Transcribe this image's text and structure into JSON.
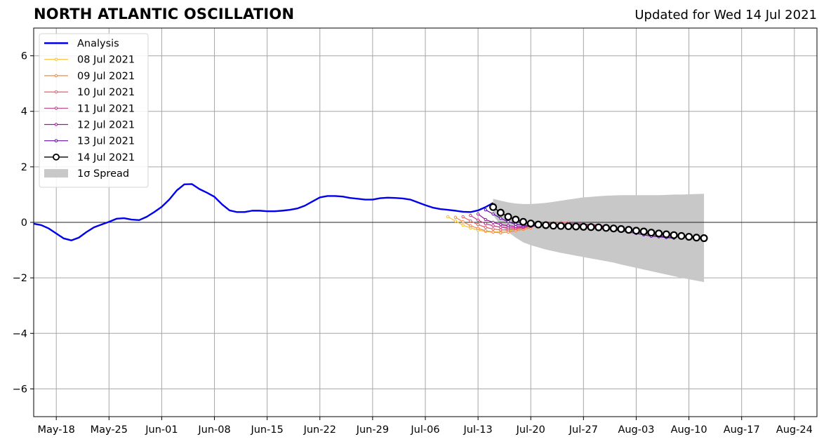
{
  "chart_data": {
    "type": "line",
    "title": "NORTH ATLANTIC OSCILLATION",
    "subtitle": "Updated for Wed 14 Jul 2021",
    "xlabel": "",
    "ylabel": "",
    "xlim": [
      "2021-05-15",
      "2021-08-27"
    ],
    "ylim": [
      -7,
      7
    ],
    "grid": true,
    "legend_position": "top-left",
    "x_ticks": [
      {
        "date": "2021-05-18",
        "label": "May-18"
      },
      {
        "date": "2021-05-25",
        "label": "May-25"
      },
      {
        "date": "2021-06-01",
        "label": "Jun-01"
      },
      {
        "date": "2021-06-08",
        "label": "Jun-08"
      },
      {
        "date": "2021-06-15",
        "label": "Jun-15"
      },
      {
        "date": "2021-06-22",
        "label": "Jun-22"
      },
      {
        "date": "2021-06-29",
        "label": "Jun-29"
      },
      {
        "date": "2021-07-06",
        "label": "Jul-06"
      },
      {
        "date": "2021-07-13",
        "label": "Jul-13"
      },
      {
        "date": "2021-07-20",
        "label": "Jul-20"
      },
      {
        "date": "2021-07-27",
        "label": "Jul-27"
      },
      {
        "date": "2021-08-03",
        "label": "Aug-03"
      },
      {
        "date": "2021-08-10",
        "label": "Aug-10"
      },
      {
        "date": "2021-08-17",
        "label": "Aug-17"
      },
      {
        "date": "2021-08-24",
        "label": "Aug-24"
      }
    ],
    "y_ticks": [
      {
        "value": 6,
        "label": "6"
      },
      {
        "value": 4,
        "label": "4"
      },
      {
        "value": 2,
        "label": "2"
      },
      {
        "value": 0,
        "label": "0"
      },
      {
        "value": -2,
        "label": "−2"
      },
      {
        "value": -4,
        "label": "−4"
      },
      {
        "value": -6,
        "label": "−6"
      }
    ],
    "analysis": {
      "name": "Analysis",
      "color": "#0000ee",
      "start": "2021-05-15",
      "values": [
        -0.05,
        -0.1,
        -0.22,
        -0.4,
        -0.58,
        -0.65,
        -0.55,
        -0.35,
        -0.18,
        -0.08,
        0.02,
        0.13,
        0.15,
        0.1,
        0.08,
        0.2,
        0.37,
        0.56,
        0.82,
        1.15,
        1.37,
        1.38,
        1.2,
        1.07,
        0.92,
        0.65,
        0.43,
        0.37,
        0.37,
        0.42,
        0.42,
        0.4,
        0.4,
        0.42,
        0.45,
        0.5,
        0.6,
        0.75,
        0.9,
        0.95,
        0.95,
        0.93,
        0.88,
        0.85,
        0.82,
        0.82,
        0.87,
        0.89,
        0.88,
        0.86,
        0.82,
        0.72,
        0.62,
        0.53,
        0.48,
        0.45,
        0.42,
        0.38,
        0.37,
        0.43,
        0.55,
        0.7
      ]
    },
    "forecasts": [
      {
        "name": "08 Jul 2021",
        "color": "#fbc12e",
        "start": "2021-07-09",
        "values": [
          0.2,
          0.05,
          -0.1,
          -0.2,
          -0.28,
          -0.33,
          -0.35,
          -0.33,
          -0.3,
          -0.25,
          -0.2,
          -0.15
        ]
      },
      {
        "name": "09 Jul 2021",
        "color": "#f3883c",
        "start": "2021-07-10",
        "values": [
          0.18,
          0.02,
          -0.12,
          -0.22,
          -0.3,
          -0.35,
          -0.38,
          -0.35,
          -0.3,
          -0.25,
          -0.2
        ]
      },
      {
        "name": "10 Jul 2021",
        "color": "#e35f67",
        "start": "2021-07-11",
        "values": [
          0.2,
          0.05,
          -0.08,
          -0.18,
          -0.24,
          -0.27,
          -0.27,
          -0.24,
          -0.2,
          -0.15,
          -0.1,
          -0.05,
          -0.02,
          0,
          0
        ]
      },
      {
        "name": "11 Jul 2021",
        "color": "#c33a86",
        "start": "2021-07-12",
        "values": [
          0.25,
          0.08,
          -0.05,
          -0.12,
          -0.18,
          -0.2,
          -0.2,
          -0.18,
          -0.15,
          -0.12,
          -0.1,
          -0.08,
          -0.06,
          -0.05,
          -0.05,
          -0.06,
          -0.08,
          -0.1,
          -0.15,
          -0.2,
          -0.25,
          -0.3,
          -0.35,
          -0.4,
          -0.45,
          -0.5,
          -0.53,
          -0.55
        ]
      },
      {
        "name": "12 Jul 2021",
        "color": "#9a179b",
        "start": "2021-07-13",
        "values": [
          0.3,
          0.1,
          0,
          -0.08,
          -0.12,
          -0.15,
          -0.15,
          -0.14,
          -0.12,
          -0.1,
          -0.08,
          -0.07,
          -0.06,
          -0.06,
          -0.07,
          -0.09,
          -0.12,
          -0.16,
          -0.2,
          -0.25,
          -0.3,
          -0.35,
          -0.4,
          -0.45,
          -0.48,
          -0.52,
          -0.55
        ]
      },
      {
        "name": "13 Jul 2021",
        "color": "#610ca6",
        "start": "2021-07-14",
        "values": [
          0.45,
          0.3,
          0.15,
          0.02,
          -0.07,
          -0.1,
          -0.12,
          -0.12,
          -0.12,
          -0.12,
          -0.12,
          -0.12,
          -0.13,
          -0.15,
          -0.17,
          -0.2,
          -0.23,
          -0.27,
          -0.3,
          -0.35,
          -0.4,
          -0.45,
          -0.5,
          -0.52,
          -0.55,
          -0.57
        ]
      }
    ],
    "current": {
      "name": "14 Jul 2021",
      "color": "#000000",
      "start": "2021-07-15",
      "values": [
        0.55,
        0.35,
        0.2,
        0.1,
        0.02,
        -0.04,
        -0.08,
        -0.1,
        -0.12,
        -0.13,
        -0.14,
        -0.15,
        -0.16,
        -0.17,
        -0.18,
        -0.2,
        -0.22,
        -0.24,
        -0.27,
        -0.3,
        -0.33,
        -0.37,
        -0.4,
        -0.43,
        -0.46,
        -0.49,
        -0.52,
        -0.55,
        -0.57
      ]
    },
    "spread": {
      "name": "1σ Spread",
      "color": "#c8c8c8",
      "start": "2021-07-15",
      "upper": [
        0.85,
        0.78,
        0.72,
        0.68,
        0.66,
        0.66,
        0.68,
        0.7,
        0.74,
        0.78,
        0.82,
        0.86,
        0.9,
        0.92,
        0.94,
        0.96,
        0.97,
        0.98,
        0.98,
        0.98,
        0.98,
        0.98,
        0.98,
        0.99,
        1.0,
        1.0,
        1.01,
        1.02,
        1.03
      ],
      "lower": [
        0.25,
        -0.1,
        -0.35,
        -0.55,
        -0.72,
        -0.82,
        -0.9,
        -0.98,
        -1.04,
        -1.1,
        -1.15,
        -1.2,
        -1.25,
        -1.3,
        -1.35,
        -1.4,
        -1.45,
        -1.52,
        -1.58,
        -1.64,
        -1.7,
        -1.76,
        -1.82,
        -1.88,
        -1.94,
        -2.0,
        -2.05,
        -2.1,
        -2.15
      ]
    }
  }
}
